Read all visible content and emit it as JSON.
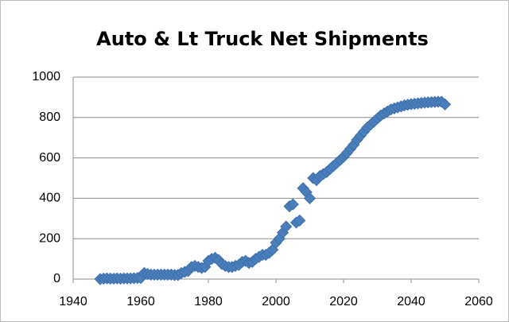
{
  "chart_data": {
    "type": "scatter",
    "title": "Auto & Lt Truck Net Shipments",
    "x": [
      1948,
      1949,
      1950,
      1951,
      1952,
      1953,
      1954,
      1955,
      1956,
      1957,
      1958,
      1959,
      1960,
      1961,
      1962,
      1963,
      1964,
      1965,
      1966,
      1967,
      1968,
      1969,
      1970,
      1971,
      1972,
      1973,
      1974,
      1975,
      1976,
      1977,
      1978,
      1979,
      1980,
      1981,
      1982,
      1983,
      1984,
      1985,
      1986,
      1987,
      1988,
      1989,
      1990,
      1991,
      1992,
      1993,
      1994,
      1995,
      1996,
      1997,
      1998,
      1999,
      2000,
      2001,
      2002,
      2003,
      2004,
      2005,
      2006,
      2007,
      2008,
      2009,
      2010,
      2011,
      2012,
      2013,
      2014,
      2015,
      2016,
      2017,
      2018,
      2019,
      2020,
      2021,
      2022,
      2023,
      2024,
      2025,
      2026,
      2027,
      2028,
      2029,
      2030,
      2031,
      2032,
      2033,
      2034,
      2035,
      2036,
      2037,
      2038,
      2039,
      2040,
      2041,
      2042,
      2043,
      2044,
      2045,
      2046,
      2047,
      2048,
      2049,
      2050
    ],
    "series": [
      {
        "color": "#4a7ebb",
        "values": [
          0,
          2,
          3,
          2,
          2,
          3,
          2,
          3,
          3,
          3,
          4,
          5,
          5,
          30,
          25,
          22,
          22,
          22,
          22,
          22,
          22,
          22,
          20,
          20,
          30,
          35,
          40,
          60,
          65,
          60,
          55,
          60,
          90,
          100,
          105,
          95,
          75,
          65,
          60,
          60,
          65,
          70,
          85,
          90,
          80,
          85,
          100,
          110,
          120,
          120,
          130,
          145,
          180,
          200,
          230,
          260,
          360,
          370,
          280,
          290,
          450,
          430,
          400,
          500,
          490,
          510,
          520,
          530,
          545,
          560,
          575,
          590,
          605,
          625,
          645,
          665,
          690,
          710,
          730,
          750,
          765,
          780,
          795,
          810,
          820,
          830,
          840,
          845,
          850,
          855,
          860,
          863,
          866,
          868,
          870,
          872,
          874,
          875,
          876,
          877,
          878,
          878,
          865
        ]
      }
    ],
    "xlim": [
      1940,
      2060
    ],
    "xticks": [
      1940,
      1960,
      1980,
      2000,
      2020,
      2040,
      2060
    ],
    "ylim": [
      0,
      1000
    ],
    "yticks": [
      0,
      200,
      400,
      600,
      800,
      1000
    ],
    "grid": true
  }
}
